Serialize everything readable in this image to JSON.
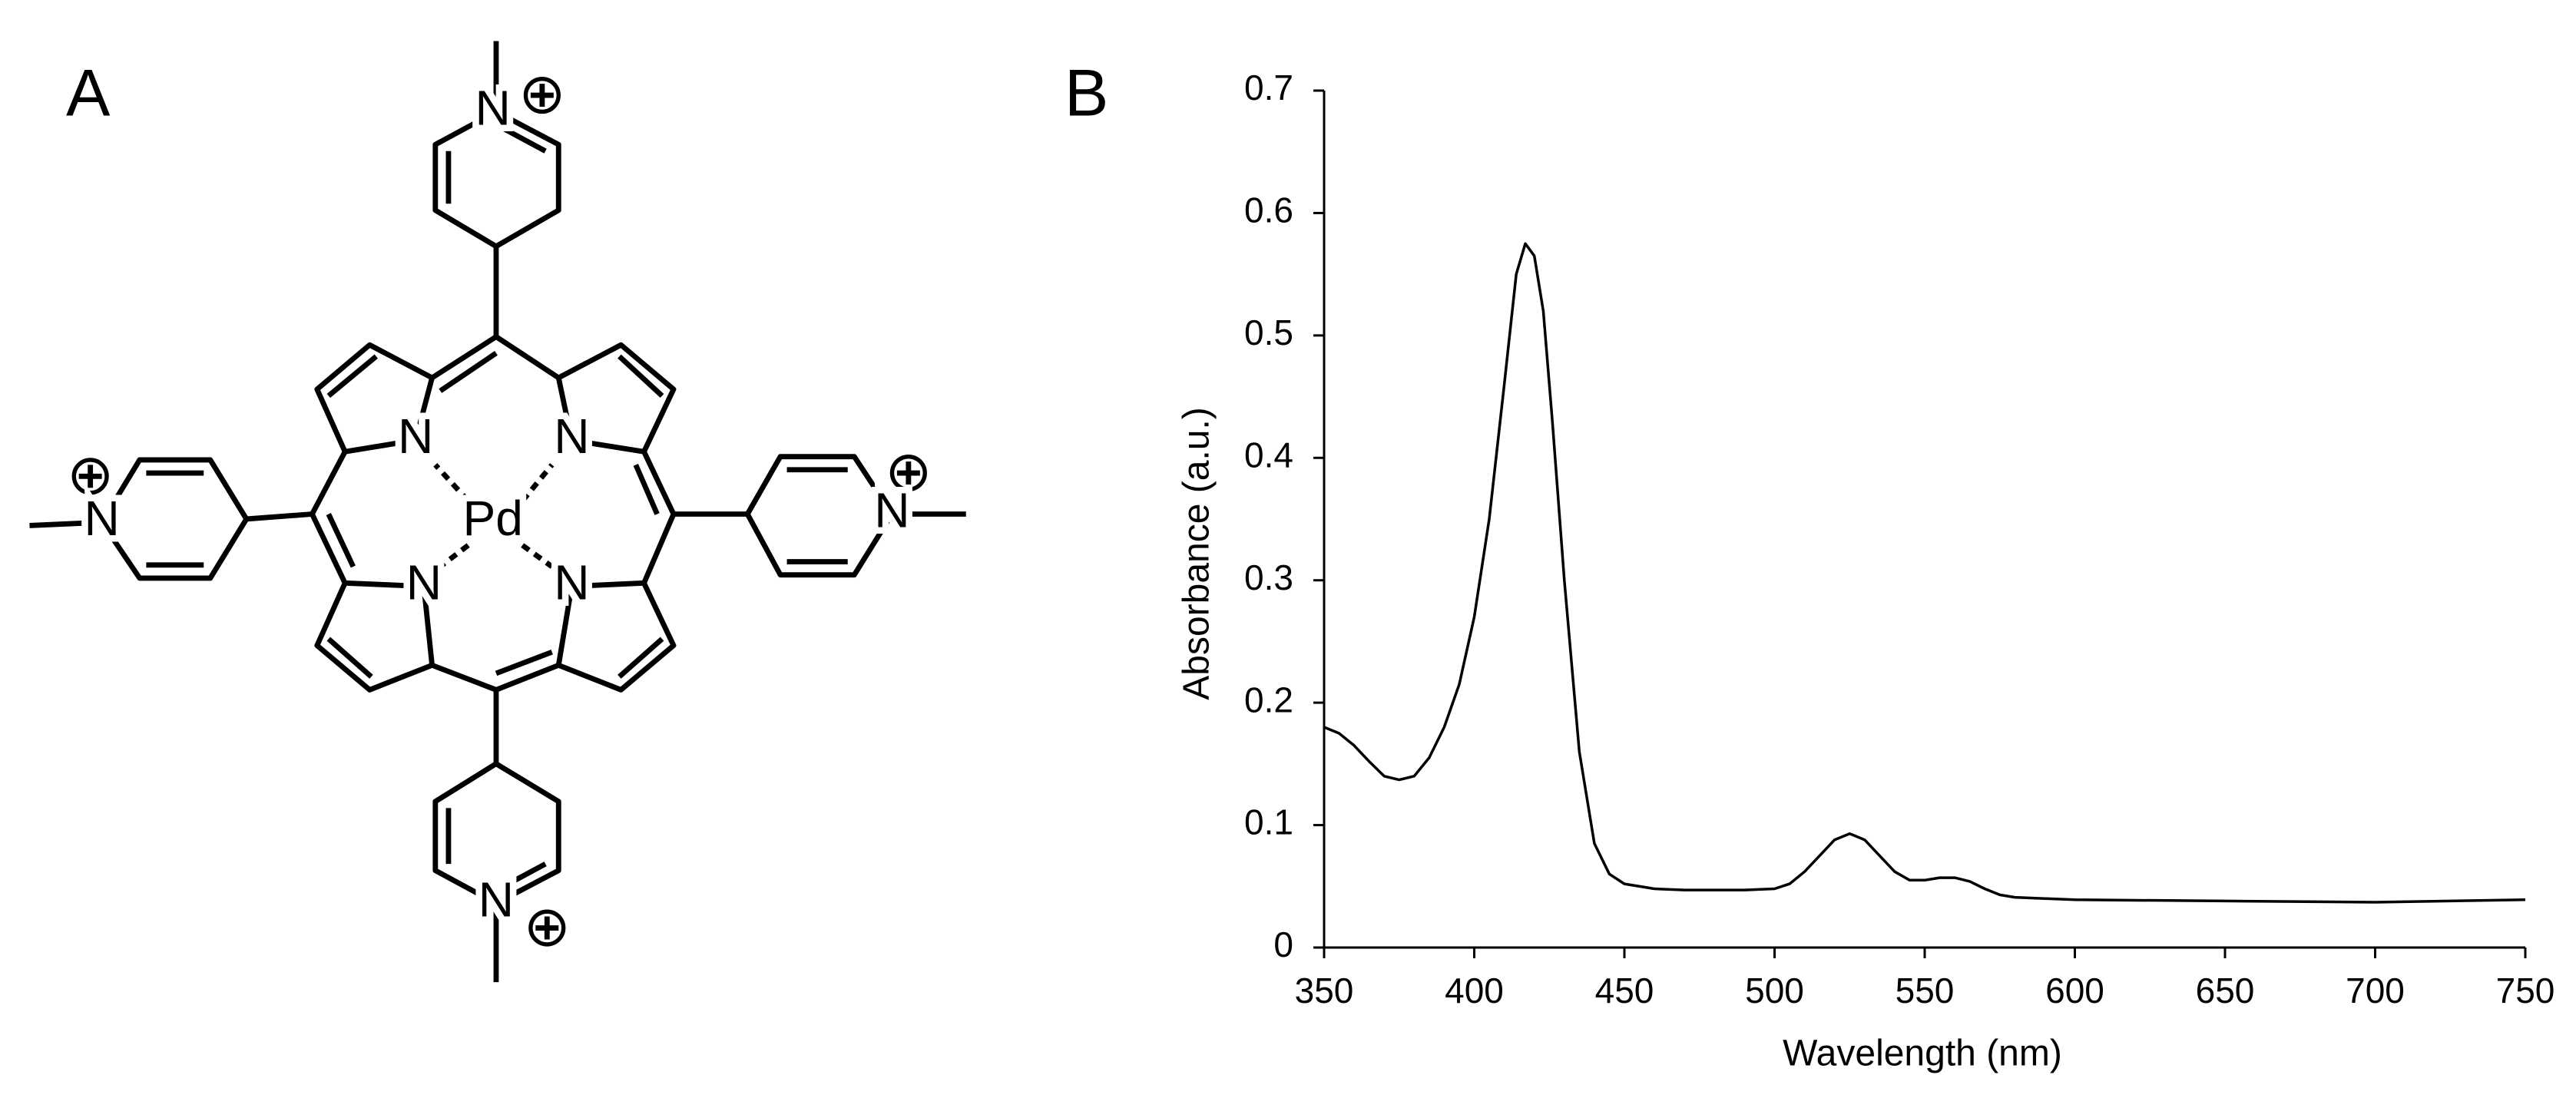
{
  "panels": {
    "a": "A",
    "b": "B"
  },
  "structure": {
    "labels": [
      "N",
      "N",
      "N",
      "N",
      "Pd",
      "N",
      "N",
      "N",
      "N"
    ]
  },
  "chart_data": {
    "type": "line",
    "x_label": "Wavelength (nm)",
    "y_label": "Absorbance (a.u.)",
    "x": [
      350,
      355,
      360,
      365,
      370,
      375,
      380,
      385,
      390,
      395,
      400,
      405,
      410,
      414,
      417,
      420,
      423,
      426,
      430,
      435,
      440,
      445,
      450,
      460,
      470,
      480,
      490,
      500,
      505,
      510,
      515,
      520,
      525,
      530,
      535,
      540,
      545,
      550,
      555,
      560,
      565,
      570,
      575,
      580,
      590,
      600,
      650,
      700,
      750
    ],
    "values": [
      0.18,
      0.175,
      0.165,
      0.152,
      0.14,
      0.137,
      0.14,
      0.155,
      0.18,
      0.215,
      0.27,
      0.35,
      0.46,
      0.55,
      0.575,
      0.565,
      0.52,
      0.43,
      0.3,
      0.16,
      0.085,
      0.06,
      0.052,
      0.048,
      0.047,
      0.047,
      0.047,
      0.048,
      0.052,
      0.062,
      0.075,
      0.088,
      0.093,
      0.088,
      0.075,
      0.062,
      0.055,
      0.055,
      0.057,
      0.057,
      0.054,
      0.048,
      0.043,
      0.041,
      0.04,
      0.039,
      0.038,
      0.037,
      0.039
    ],
    "color": "#000000",
    "xlim": [
      350,
      750
    ],
    "xticks": [
      350,
      400,
      450,
      500,
      550,
      600,
      650,
      700,
      750
    ],
    "ylim": [
      0,
      0.7
    ],
    "yticks": [
      0,
      0.1,
      0.2,
      0.3,
      0.4,
      0.5,
      0.6,
      0.7
    ],
    "grid": false
  }
}
